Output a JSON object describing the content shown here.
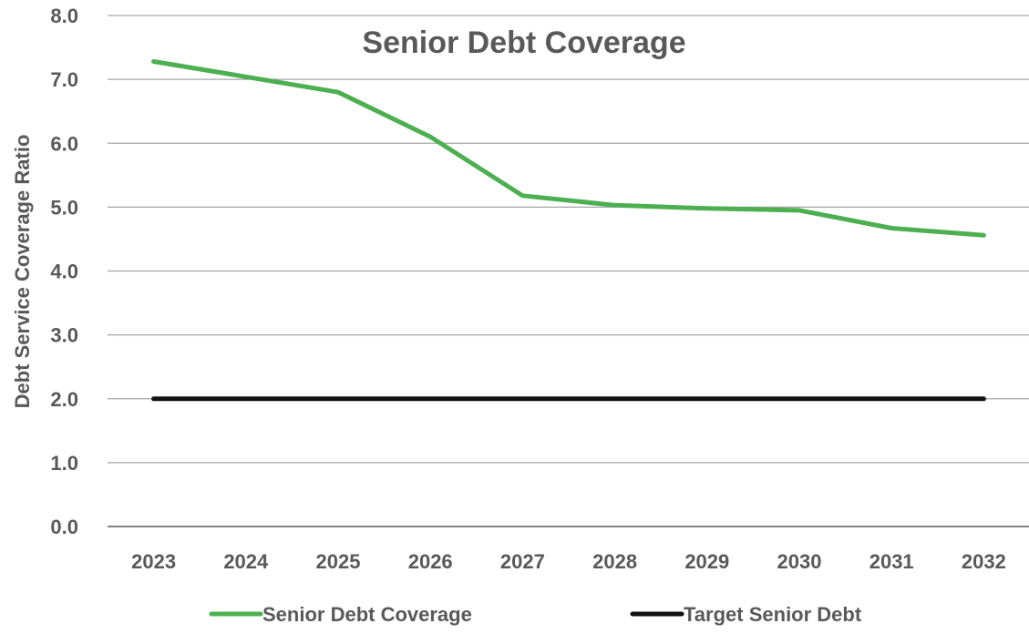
{
  "chart_data": {
    "type": "line",
    "title": "Senior Debt Coverage",
    "xlabel": "",
    "ylabel": "Debt Service Coverage Ratio",
    "categories": [
      "2023",
      "2024",
      "2025",
      "2026",
      "2027",
      "2028",
      "2029",
      "2030",
      "2031",
      "2032"
    ],
    "ylim": [
      0,
      8
    ],
    "yticks": [
      "0.0",
      "1.0",
      "2.0",
      "3.0",
      "4.0",
      "5.0",
      "6.0",
      "7.0",
      "8.0"
    ],
    "grid": "horizontal",
    "legend_position": "bottom",
    "series": [
      {
        "name": "Senior Debt Coverage",
        "color": "#4CAF50",
        "values": [
          7.28,
          7.04,
          6.8,
          6.1,
          5.18,
          5.03,
          4.98,
          4.95,
          4.67,
          4.56
        ]
      },
      {
        "name": "Target Senior Debt",
        "color": "#111111",
        "values": [
          2.0,
          2.0,
          2.0,
          2.0,
          2.0,
          2.0,
          2.0,
          2.0,
          2.0,
          2.0
        ]
      }
    ]
  }
}
